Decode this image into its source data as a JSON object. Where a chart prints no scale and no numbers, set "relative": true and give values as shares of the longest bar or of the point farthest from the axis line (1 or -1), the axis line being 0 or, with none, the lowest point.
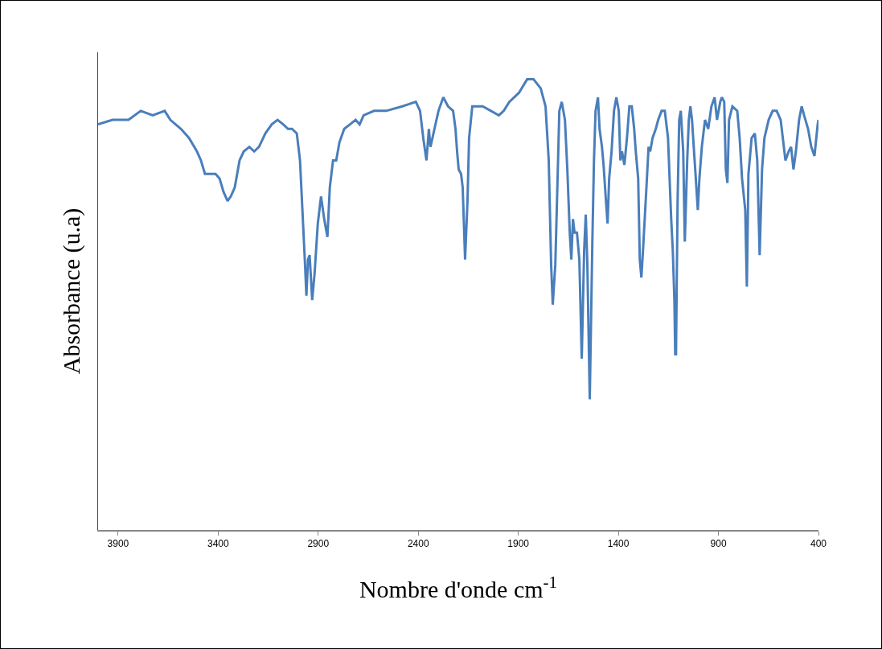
{
  "chart_data": {
    "type": "line",
    "relative": true,
    "xlabel": "Nombre d'onde cm$^{-1}$",
    "ylabel": "Absorbance (u.a)",
    "xlim": [
      4000,
      400
    ],
    "xticks": [
      3900,
      3400,
      2900,
      2400,
      1900,
      1400,
      900,
      400
    ],
    "grid": false,
    "marker": "none",
    "line_style": "solid",
    "series": [
      {
        "color": "#4a7ebb",
        "x": [
          4000,
          3928,
          3848,
          3787,
          3727,
          3667,
          3639,
          3586,
          3546,
          3506,
          3486,
          3466,
          3437,
          3413,
          3393,
          3373,
          3353,
          3337,
          3317,
          3293,
          3272,
          3244,
          3220,
          3196,
          3164,
          3132,
          3103,
          3075,
          3051,
          3031,
          3007,
          2991,
          2979,
          2967,
          2959,
          2951,
          2943,
          2930,
          2918,
          2902,
          2886,
          2870,
          2854,
          2842,
          2826,
          2810,
          2794,
          2770,
          2741,
          2713,
          2693,
          2673,
          2621,
          2560,
          2480,
          2412,
          2391,
          2375,
          2359,
          2347,
          2339,
          2319,
          2299,
          2275,
          2251,
          2226,
          2214,
          2206,
          2198,
          2186,
          2178,
          2166,
          2154,
          2146,
          2130,
          2078,
          2037,
          1997,
          1973,
          1945,
          1897,
          1856,
          1824,
          1788,
          1764,
          1748,
          1736,
          1728,
          1715,
          1695,
          1683,
          1667,
          1655,
          1643,
          1635,
          1627,
          1619,
          1607,
          1595,
          1583,
          1571,
          1563,
          1555,
          1543,
          1530,
          1522,
          1514,
          1502,
          1494,
          1482,
          1474,
          1462,
          1454,
          1446,
          1434,
          1422,
          1410,
          1398,
          1390,
          1382,
          1370,
          1357,
          1345,
          1333,
          1321,
          1313,
          1301,
          1293,
          1285,
          1277,
          1261,
          1249,
          1241,
          1229,
          1213,
          1201,
          1184,
          1168,
          1152,
          1136,
          1128,
          1120,
          1116,
          1112,
          1104,
          1096,
          1088,
          1076,
          1068,
          1056,
          1048,
          1040,
          1032,
          1016,
          1003,
          995,
          983,
          967,
          951,
          935,
          919,
          907,
          891,
          883,
          871,
          863,
          855,
          847,
          830,
          806,
          794,
          782,
          766,
          758,
          750,
          734,
          718,
          706,
          694,
          682,
          670,
          649,
          629,
          609,
          589,
          565,
          549,
          537,
          525,
          513,
          497,
          484,
          472,
          452,
          436,
          420,
          404,
          400
        ],
        "values": [
          0.9,
          0.91,
          0.91,
          0.93,
          0.92,
          0.93,
          0.91,
          0.89,
          0.87,
          0.84,
          0.82,
          0.79,
          0.79,
          0.79,
          0.78,
          0.75,
          0.73,
          0.74,
          0.76,
          0.82,
          0.84,
          0.85,
          0.84,
          0.85,
          0.88,
          0.9,
          0.91,
          0.9,
          0.89,
          0.89,
          0.88,
          0.82,
          0.71,
          0.6,
          0.52,
          0.6,
          0.61,
          0.51,
          0.57,
          0.68,
          0.74,
          0.69,
          0.65,
          0.76,
          0.82,
          0.82,
          0.86,
          0.89,
          0.9,
          0.91,
          0.9,
          0.92,
          0.93,
          0.93,
          0.94,
          0.95,
          0.93,
          0.87,
          0.82,
          0.89,
          0.85,
          0.89,
          0.93,
          0.96,
          0.94,
          0.93,
          0.89,
          0.84,
          0.8,
          0.79,
          0.76,
          0.6,
          0.73,
          0.87,
          0.94,
          0.94,
          0.93,
          0.92,
          0.93,
          0.95,
          0.97,
          1.0,
          1.0,
          0.98,
          0.94,
          0.82,
          0.59,
          0.5,
          0.59,
          0.93,
          0.95,
          0.91,
          0.8,
          0.66,
          0.6,
          0.69,
          0.66,
          0.66,
          0.6,
          0.38,
          0.62,
          0.7,
          0.59,
          0.29,
          0.64,
          0.82,
          0.93,
          0.96,
          0.89,
          0.85,
          0.81,
          0.73,
          0.68,
          0.78,
          0.84,
          0.93,
          0.96,
          0.93,
          0.82,
          0.84,
          0.81,
          0.87,
          0.94,
          0.94,
          0.89,
          0.84,
          0.78,
          0.6,
          0.56,
          0.62,
          0.75,
          0.85,
          0.84,
          0.87,
          0.89,
          0.91,
          0.93,
          0.93,
          0.87,
          0.69,
          0.62,
          0.51,
          0.39,
          0.39,
          0.73,
          0.91,
          0.93,
          0.84,
          0.64,
          0.82,
          0.91,
          0.94,
          0.91,
          0.8,
          0.71,
          0.78,
          0.85,
          0.91,
          0.89,
          0.94,
          0.96,
          0.91,
          0.95,
          0.96,
          0.95,
          0.8,
          0.77,
          0.91,
          0.94,
          0.93,
          0.87,
          0.78,
          0.71,
          0.54,
          0.79,
          0.87,
          0.88,
          0.82,
          0.61,
          0.8,
          0.87,
          0.91,
          0.93,
          0.93,
          0.91,
          0.82,
          0.84,
          0.85,
          0.8,
          0.84,
          0.91,
          0.94,
          0.92,
          0.89,
          0.85,
          0.83,
          0.9,
          0.91
        ]
      }
    ]
  }
}
